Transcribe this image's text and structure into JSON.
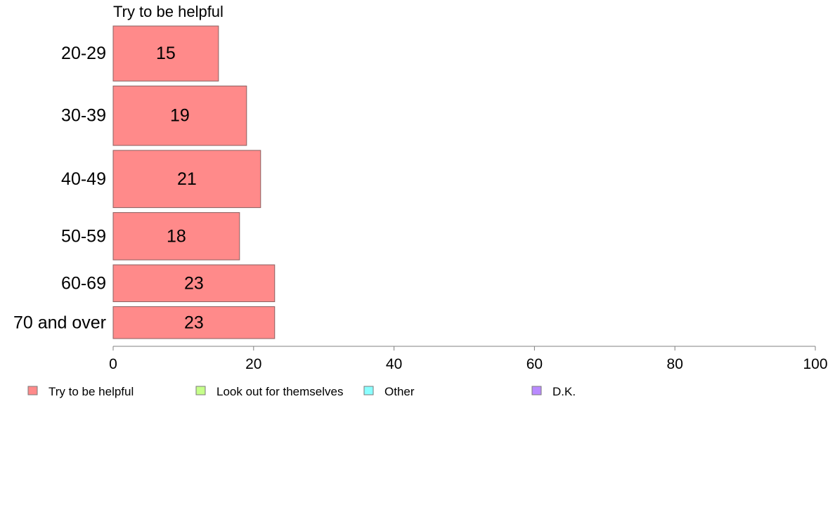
{
  "chart_data": {
    "type": "bar",
    "orientation": "horizontal",
    "title": "Try to be helpful",
    "categories": [
      "20-29",
      "30-39",
      "40-49",
      "50-59",
      "60-69",
      "70 and over"
    ],
    "series": [
      {
        "name": "Try to be helpful",
        "values": [
          15,
          19,
          21,
          18,
          23,
          23
        ],
        "labels": [
          "15",
          "19",
          "21",
          "18",
          "23",
          "23"
        ]
      }
    ],
    "category_weights": [
      1.0,
      1.08,
      1.04,
      0.86,
      0.67,
      0.58
    ],
    "xlim": [
      0,
      100
    ],
    "xticks": [
      0,
      20,
      40,
      60,
      80,
      100
    ],
    "xtick_labels": [
      "0",
      "20",
      "40",
      "60",
      "80",
      "100"
    ],
    "xlabel": "",
    "ylabel": "",
    "grid": false,
    "legend_position": "bottom-left",
    "legend": [
      {
        "label": "Try to be helpful",
        "color": "#ff8a8a"
      },
      {
        "label": "Look out for themselves",
        "color": "#c6ff8a"
      },
      {
        "label": "Other",
        "color": "#8affff"
      },
      {
        "label": "D.K.",
        "color": "#b98aff"
      }
    ],
    "bar_color": "#ff8a8a",
    "bar_stroke": "#8a6060",
    "axis_color": "#808080"
  }
}
